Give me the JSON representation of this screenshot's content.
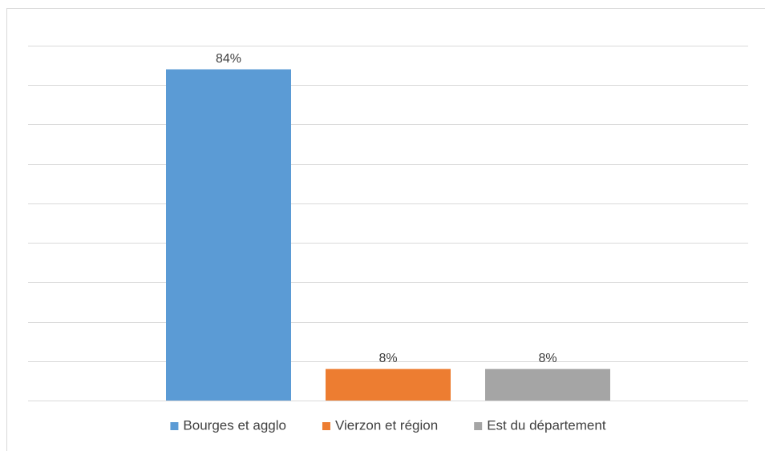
{
  "chart_data": {
    "type": "bar",
    "categories": [
      null
    ],
    "series": [
      {
        "name": "Bourges et agglo",
        "color": "#5b9bd5",
        "values": [
          84
        ],
        "value_labels": [
          "84%"
        ]
      },
      {
        "name": "Vierzon et région",
        "color": "#ed7d31",
        "values": [
          8
        ],
        "value_labels": [
          "8%"
        ]
      },
      {
        "name": "Est du département",
        "color": "#a5a5a5",
        "values": [
          8
        ],
        "value_labels": [
          "8%"
        ]
      }
    ],
    "ylim": [
      0,
      90
    ],
    "yticks": [
      0,
      10,
      20,
      30,
      40,
      50,
      60,
      70,
      80,
      90
    ],
    "grid": true,
    "legend": "bottom"
  }
}
